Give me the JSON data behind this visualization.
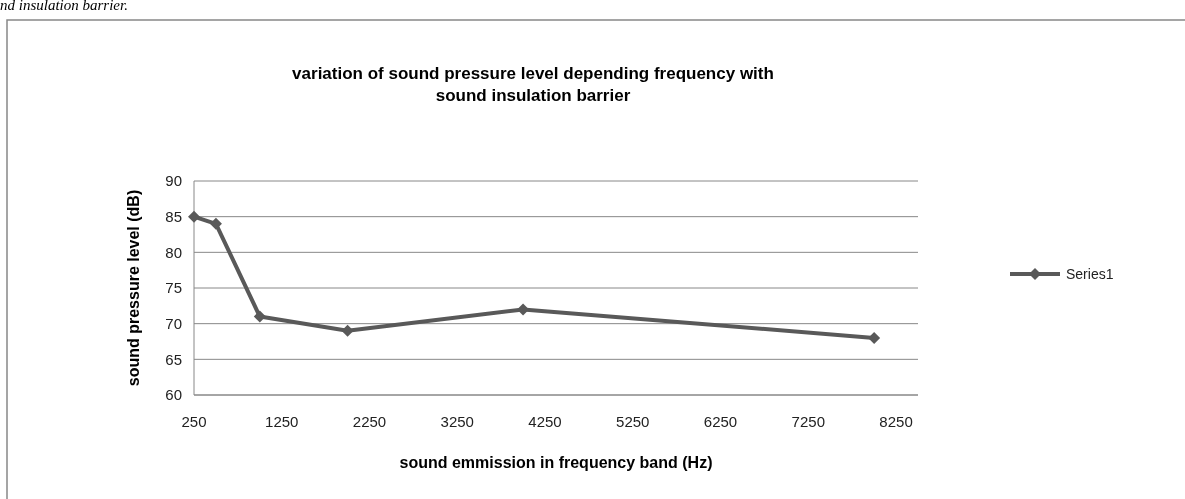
{
  "chart_data": {
    "type": "line",
    "title": "variation of sound pressure level depending frequency with\nsound insulation barrier",
    "xlabel": "sound emmission in frequency band (Hz)",
    "ylabel": "sound pressure level (dB)",
    "annotations": [
      "nd insulation barrier."
    ],
    "x": [
      250,
      500,
      1000,
      2000,
      4000,
      8000
    ],
    "series": [
      {
        "name": "Series1",
        "color": "#595959",
        "values": [
          85,
          84,
          71,
          69,
          72,
          68
        ]
      }
    ],
    "xlim": [
      250,
      8500
    ],
    "xticks": [
      250,
      1250,
      2250,
      3250,
      4250,
      5250,
      6250,
      7250,
      8250
    ],
    "ylim": [
      60,
      90
    ],
    "yticks": [
      60,
      65,
      70,
      75,
      80,
      85,
      90
    ],
    "grid": "y",
    "legend": "right",
    "marker": "diamond",
    "line_style": "solid"
  }
}
